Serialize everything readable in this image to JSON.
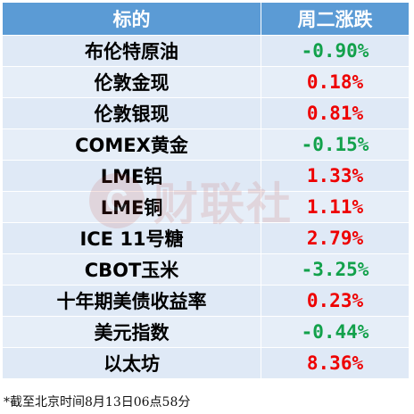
{
  "header": {
    "col1": "标的",
    "col2": "周二涨跌"
  },
  "rows": [
    {
      "name": "布伦特原油",
      "change": "-0.90%",
      "direction": "down"
    },
    {
      "name": "伦敦金现",
      "change": "0.18%",
      "direction": "up"
    },
    {
      "name": "伦敦银现",
      "change": "0.81%",
      "direction": "up"
    },
    {
      "name": "COMEX黄金",
      "change": "-0.15%",
      "direction": "down"
    },
    {
      "name": "LME铝",
      "change": "1.33%",
      "direction": "up"
    },
    {
      "name": "LME铜",
      "change": "1.11%",
      "direction": "up"
    },
    {
      "name": "ICE 11号糖",
      "change": "2.79%",
      "direction": "up"
    },
    {
      "name": "CBOT玉米",
      "change": "-3.25%",
      "direction": "down"
    },
    {
      "name": "十年期美债收益率",
      "change": "0.23%",
      "direction": "up"
    },
    {
      "name": "美元指数",
      "change": "-0.44%",
      "direction": "down"
    },
    {
      "name": "以太坊",
      "change": "8.36%",
      "direction": "up"
    }
  ],
  "footnote": "*截至北京时间8月13日06点58分",
  "watermark": {
    "logo_letter": "C",
    "text": "财联社"
  },
  "colors": {
    "header_bg": "#5b9bd5",
    "row_bg": "#dfe9f6",
    "up": "#ee0000",
    "down": "#12a14b"
  }
}
